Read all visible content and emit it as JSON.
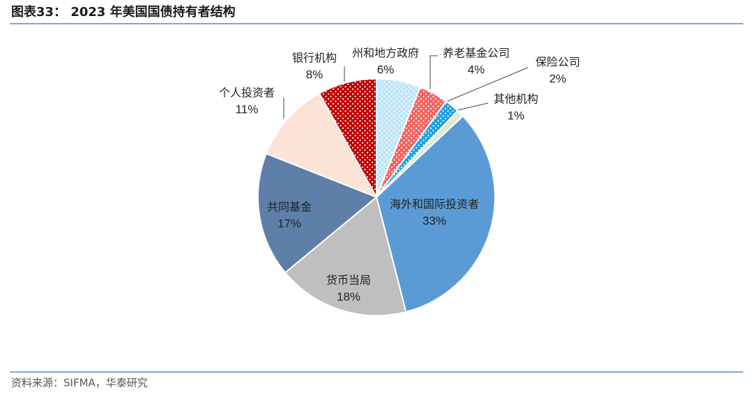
{
  "chart_data": {
    "type": "pie",
    "title": "图表33： 2023 年美国国债持有者结构",
    "source": "资料来源：SIFMA，华泰研究",
    "categories": [
      "州和地方政府",
      "养老基金公司",
      "保险公司",
      "其他机构",
      "海外和国际投资者",
      "货币当局",
      "共同基金",
      "个人投资者",
      "银行机构"
    ],
    "values": [
      6,
      4,
      2,
      1,
      33,
      18,
      17,
      11,
      8
    ],
    "value_labels": [
      "6%",
      "4%",
      "2%",
      "1%",
      "33%",
      "18%",
      "17%",
      "11%",
      "8%"
    ],
    "colors": [
      "#bfe6f8",
      "#f4625f",
      "#1ea0e6",
      "#dcebd3",
      "#5b9bd5",
      "#bfbfbf",
      "#5e7fa8",
      "#fbe3d6",
      "#c00000"
    ],
    "patterns": [
      "dots",
      "dots",
      "dots",
      null,
      null,
      null,
      null,
      null,
      "dots"
    ]
  }
}
